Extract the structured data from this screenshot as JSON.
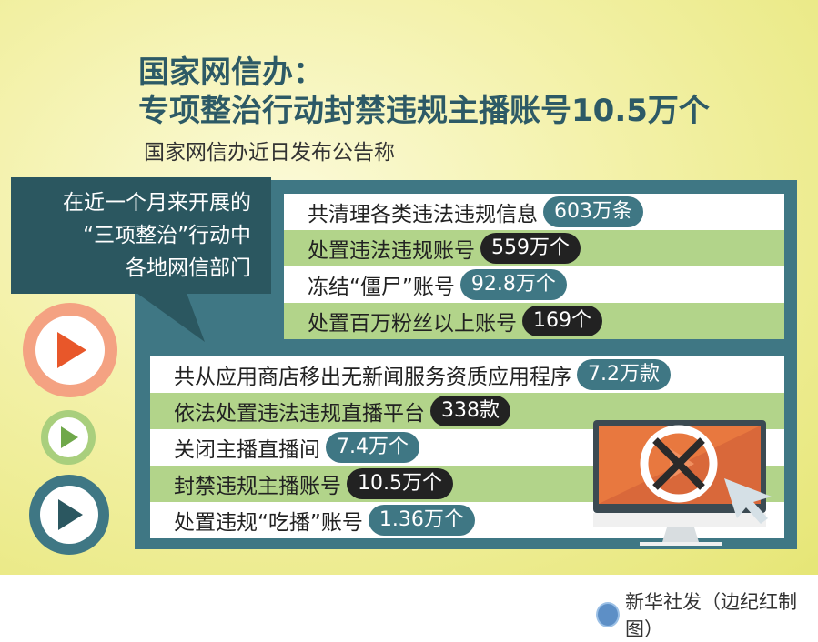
{
  "title": {
    "line1": "国家网信办：",
    "line2": "专项整治行动封禁违规主播账号10.5万个",
    "subtitle": "国家网信办近日发布公告称"
  },
  "bubble": {
    "lines": [
      "在近一个月来开展的",
      "“三项整治”行动中",
      "各地网信部门"
    ]
  },
  "top_rows": [
    {
      "label": "共清理各类违法违规信息",
      "value": "603万条",
      "style": "teal"
    },
    {
      "label": "处置违法违规账号",
      "value": "559万个",
      "style": "dark"
    },
    {
      "label": "冻结“僵尸”账号",
      "value": "92.8万个",
      "style": "teal"
    },
    {
      "label": "处置百万粉丝以上账号",
      "value": "169个",
      "style": "dark"
    }
  ],
  "bottom_rows": [
    {
      "label": "共从应用商店移出无新闻服务资质应用程序",
      "value": "7.2万款",
      "style": "teal"
    },
    {
      "label": "依法处置违法违规直播平台",
      "value": "338款",
      "style": "dark"
    },
    {
      "label": "关闭主播直播间",
      "value": "7.4万个",
      "style": "teal"
    },
    {
      "label": "封禁违规主播账号",
      "value": "10.5万个",
      "style": "dark"
    },
    {
      "label": "处置违规“吃播”账号",
      "value": "1.36万个",
      "style": "teal"
    }
  ],
  "credit": "新华社发（边纪红制图）",
  "colors": {
    "teal": "#3f7784",
    "green": "#b2d48a",
    "orange": "#e8683a",
    "yellow": "#e6e676"
  }
}
